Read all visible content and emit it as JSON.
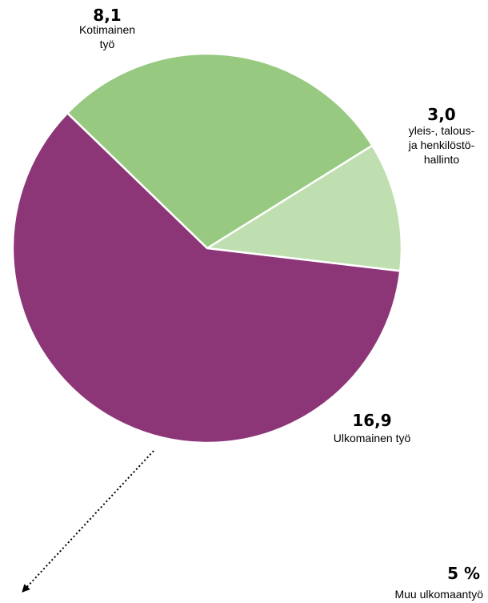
{
  "chart_data": {
    "type": "pie",
    "slices": [
      {
        "value": 8.1,
        "value_label": "8,1",
        "label_lines": [
          "Kotimainen",
          "työ"
        ],
        "color": "#97c981"
      },
      {
        "value": 3.0,
        "value_label": "3,0",
        "label_lines": [
          "yleis-, talous-",
          "ja henkilöstö-",
          "hallinto"
        ],
        "color": "#c0dfb0"
      },
      {
        "value": 16.9,
        "value_label": "16,9",
        "label_lines": [
          "Ulkomainen työ"
        ],
        "color": "#8c3677"
      }
    ],
    "callout": {
      "value_label": "5 %",
      "label": "Muu ulkomaantyö"
    }
  }
}
